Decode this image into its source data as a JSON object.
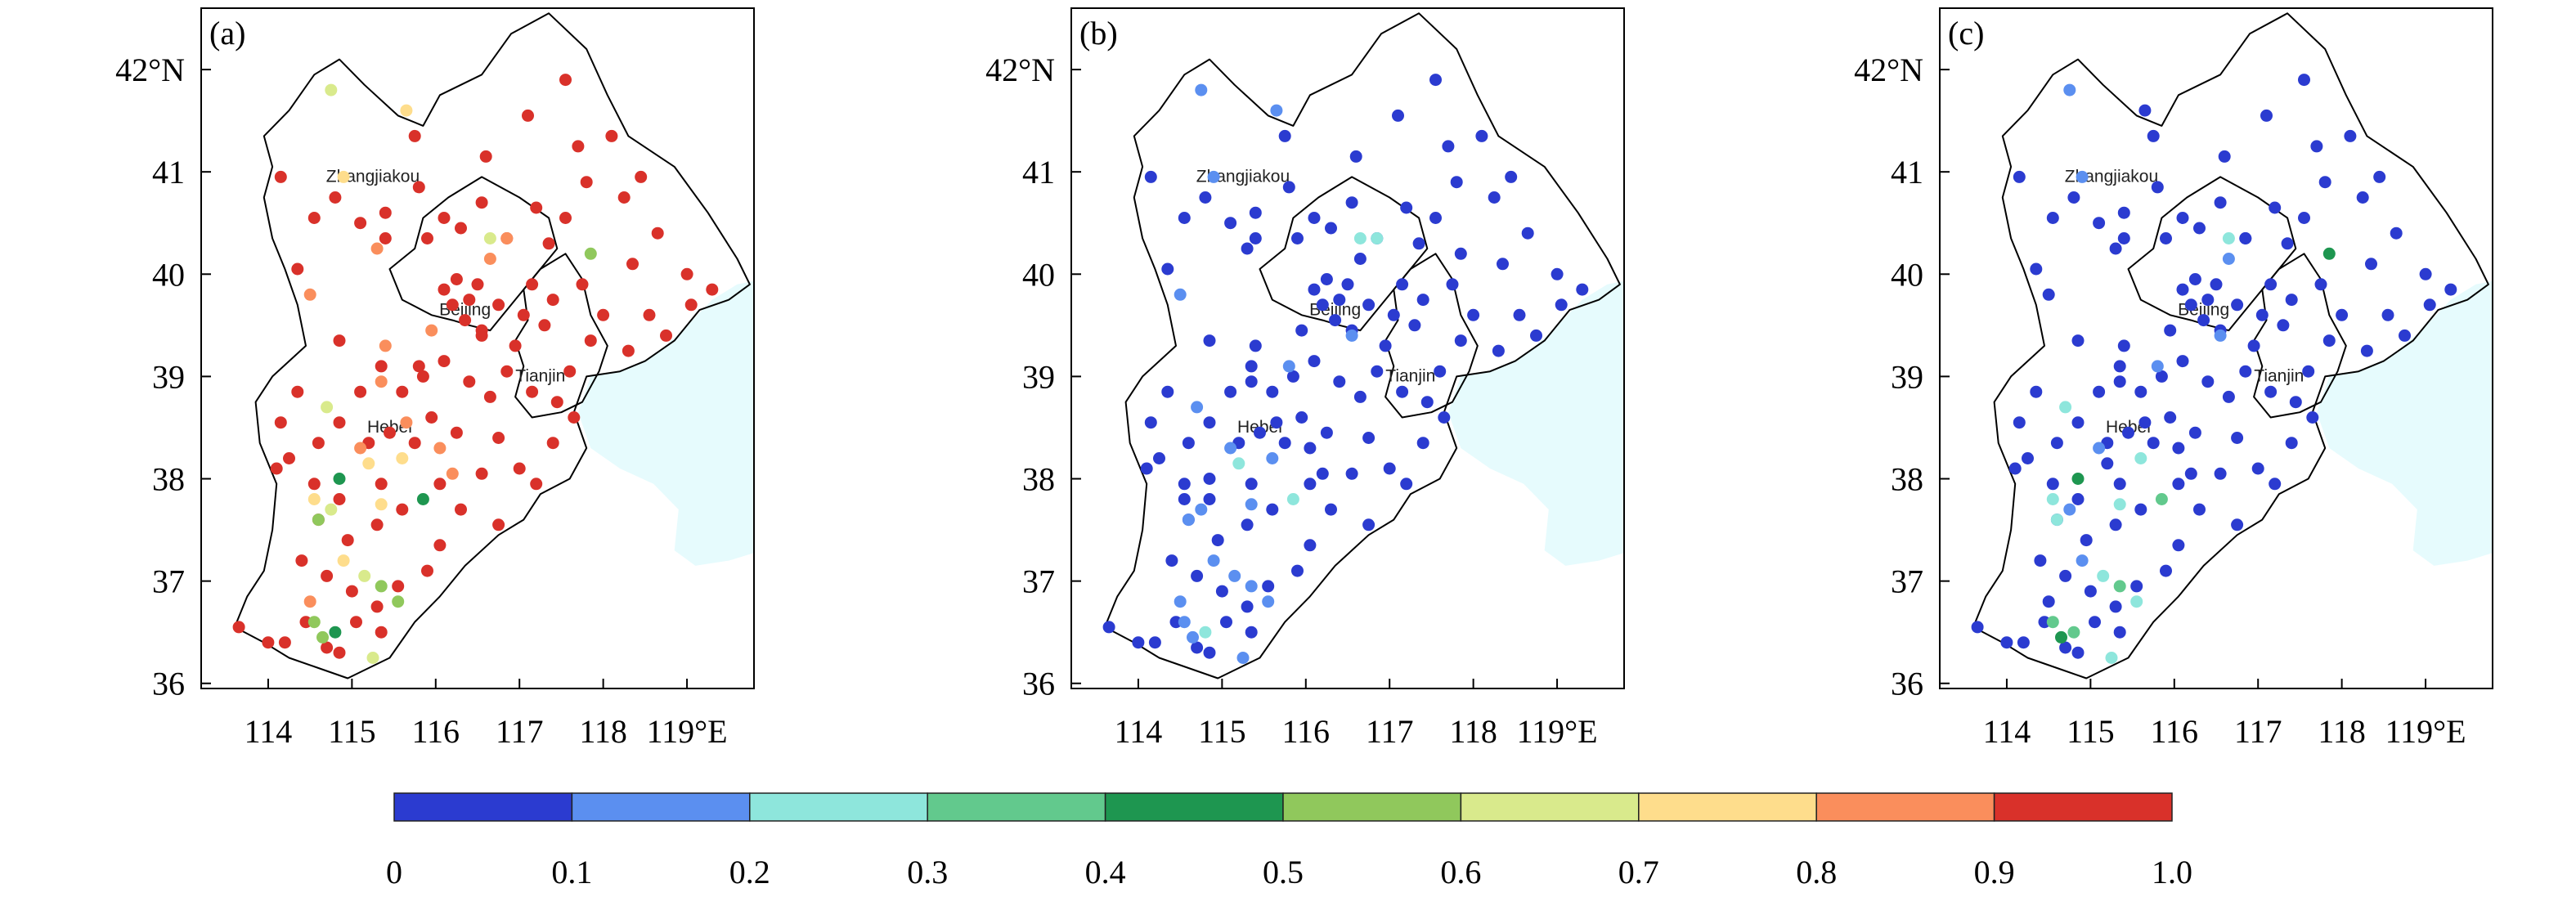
{
  "panels": [
    {
      "label": "(a)"
    },
    {
      "label": "(b)"
    },
    {
      "label": "(c)"
    }
  ],
  "map": {
    "lon_range": [
      113.2,
      119.8
    ],
    "lat_range": [
      35.95,
      42.6
    ],
    "lon_ticks": [
      114,
      115,
      116,
      117,
      118,
      119
    ],
    "lon_tick_labels": [
      "114",
      "115",
      "116",
      "117",
      "118",
      "119°E"
    ],
    "lat_ticks": [
      36,
      37,
      38,
      39,
      40,
      41,
      42
    ],
    "lat_tick_labels": [
      "36",
      "37",
      "38",
      "39",
      "40",
      "41",
      "42°N"
    ],
    "cities": [
      {
        "name": "Zhangjiakou",
        "lon": 115.25,
        "lat": 40.9
      },
      {
        "name": "Beijing",
        "lon": 116.35,
        "lat": 39.6
      },
      {
        "name": "Tianjin",
        "lon": 117.25,
        "lat": 38.95
      },
      {
        "name": "Hebei",
        "lon": 115.45,
        "lat": 38.45
      }
    ],
    "sea_color": "#e6fbfd",
    "border_color": "#000000"
  },
  "colorbar": {
    "colors": [
      "#2b3bd0",
      "#5b8ff0",
      "#8ee6dc",
      "#62c98d",
      "#1e9650",
      "#90c85c",
      "#d9ea8c",
      "#fedd8c",
      "#fa8e5c",
      "#d9312a"
    ],
    "tick_labels": [
      "0",
      "0.1",
      "0.2",
      "0.3",
      "0.4",
      "0.5",
      "0.6",
      "0.7",
      "0.8",
      "0.9",
      "1.0"
    ]
  },
  "stations": [
    [
      115.4,
      40.35,
      9,
      0,
      0
    ],
    [
      115.75,
      41.35,
      9,
      0,
      0
    ],
    [
      116.6,
      41.15,
      9,
      0,
      0
    ],
    [
      117.55,
      41.9,
      9,
      0,
      0
    ],
    [
      117.1,
      41.55,
      9,
      0,
      0
    ],
    [
      118.1,
      41.35,
      9,
      0,
      0
    ],
    [
      117.7,
      41.25,
      9,
      0,
      0
    ],
    [
      115.8,
      40.85,
      9,
      0,
      0
    ],
    [
      114.15,
      40.95,
      9,
      0,
      0
    ],
    [
      114.35,
      40.05,
      9,
      0,
      0
    ],
    [
      114.55,
      40.55,
      9,
      0,
      0
    ],
    [
      114.8,
      40.75,
      9,
      0,
      0
    ],
    [
      115.1,
      40.5,
      9,
      0,
      0
    ],
    [
      115.4,
      40.6,
      9,
      0,
      0
    ],
    [
      115.9,
      40.35,
      9,
      0,
      0
    ],
    [
      116.1,
      40.55,
      9,
      0,
      0
    ],
    [
      116.3,
      40.45,
      9,
      0,
      0
    ],
    [
      116.55,
      40.7,
      9,
      0,
      0
    ],
    [
      116.85,
      40.35,
      9,
      0,
      0
    ],
    [
      117.2,
      40.65,
      9,
      0,
      0
    ],
    [
      117.35,
      40.3,
      9,
      0,
      0
    ],
    [
      117.55,
      40.55,
      9,
      0,
      0
    ],
    [
      117.8,
      40.9,
      9,
      0,
      0
    ],
    [
      118.25,
      40.75,
      9,
      0,
      0
    ],
    [
      118.45,
      40.95,
      9,
      0,
      0
    ],
    [
      118.65,
      40.4,
      9,
      0,
      0
    ],
    [
      118.35,
      40.1,
      9,
      0,
      0
    ],
    [
      119.0,
      40.0,
      9,
      0,
      0
    ],
    [
      119.3,
      39.85,
      9,
      0,
      0
    ],
    [
      119.05,
      39.7,
      9,
      0,
      0
    ],
    [
      118.75,
      39.4,
      9,
      0,
      0
    ],
    [
      118.55,
      39.6,
      9,
      0,
      0
    ],
    [
      118.3,
      39.25,
      9,
      0,
      0
    ],
    [
      118.0,
      39.6,
      9,
      0,
      0
    ],
    [
      117.85,
      39.35,
      9,
      0,
      0
    ],
    [
      117.75,
      39.9,
      9,
      0,
      0
    ],
    [
      117.4,
      39.75,
      9,
      0,
      0
    ],
    [
      117.15,
      39.9,
      9,
      0,
      0
    ],
    [
      117.05,
      39.6,
      9,
      0,
      0
    ],
    [
      116.95,
      39.3,
      9,
      0,
      0
    ],
    [
      117.3,
      39.5,
      9,
      0,
      0
    ],
    [
      117.6,
      39.05,
      9,
      0,
      0
    ],
    [
      117.45,
      38.75,
      9,
      0,
      0
    ],
    [
      117.15,
      38.85,
      9,
      0,
      0
    ],
    [
      117.65,
      38.6,
      9,
      0,
      0
    ],
    [
      117.4,
      38.35,
      9,
      0,
      0
    ],
    [
      117.0,
      38.1,
      9,
      0,
      0
    ],
    [
      117.2,
      37.95,
      9,
      0,
      0
    ],
    [
      116.75,
      38.4,
      9,
      0,
      0
    ],
    [
      116.55,
      38.05,
      9,
      0,
      0
    ],
    [
      116.3,
      37.7,
      9,
      0,
      0
    ],
    [
      116.05,
      37.35,
      9,
      0,
      0
    ],
    [
      116.1,
      39.85,
      9,
      0,
      0
    ],
    [
      116.25,
      39.95,
      9,
      0,
      0
    ],
    [
      116.4,
      39.75,
      9,
      0,
      0
    ],
    [
      116.5,
      39.9,
      9,
      0,
      0
    ],
    [
      116.2,
      39.7,
      9,
      0,
      0
    ],
    [
      116.35,
      39.55,
      9,
      0,
      0
    ],
    [
      116.75,
      39.7,
      9,
      0,
      0
    ],
    [
      116.55,
      39.45,
      9,
      0,
      0
    ],
    [
      116.85,
      39.05,
      9,
      0,
      0
    ],
    [
      116.65,
      38.8,
      9,
      0,
      0
    ],
    [
      116.4,
      38.95,
      9,
      0,
      0
    ],
    [
      116.1,
      39.15,
      9,
      0,
      0
    ],
    [
      115.85,
      39.0,
      9,
      0,
      0
    ],
    [
      115.6,
      38.85,
      9,
      0,
      0
    ],
    [
      115.35,
      39.1,
      9,
      0,
      0
    ],
    [
      115.1,
      38.85,
      9,
      0,
      0
    ],
    [
      114.85,
      39.35,
      9,
      0,
      0
    ],
    [
      114.35,
      38.85,
      9,
      0,
      0
    ],
    [
      115.95,
      38.6,
      9,
      0,
      0
    ],
    [
      116.25,
      38.45,
      9,
      0,
      0
    ],
    [
      115.75,
      38.35,
      9,
      0,
      0
    ],
    [
      115.45,
      38.45,
      9,
      0,
      0
    ],
    [
      115.2,
      38.35,
      9,
      0,
      0
    ],
    [
      114.85,
      38.55,
      9,
      0,
      0
    ],
    [
      114.6,
      38.35,
      9,
      0,
      0
    ],
    [
      114.25,
      38.2,
      9,
      0,
      0
    ],
    [
      114.55,
      37.95,
      9,
      0,
      0
    ],
    [
      114.85,
      37.8,
      9,
      0,
      0
    ],
    [
      115.35,
      37.95,
      9,
      0,
      0
    ],
    [
      116.05,
      37.95,
      9,
      0,
      0
    ],
    [
      115.6,
      37.7,
      9,
      0,
      0
    ],
    [
      115.3,
      37.55,
      9,
      0,
      0
    ],
    [
      114.95,
      37.4,
      9,
      0,
      0
    ],
    [
      114.6,
      37.6,
      9,
      0,
      0
    ],
    [
      114.4,
      37.2,
      9,
      0,
      0
    ],
    [
      114.7,
      37.05,
      9,
      0,
      0
    ],
    [
      115.0,
      36.9,
      9,
      0,
      0
    ],
    [
      115.3,
      36.75,
      9,
      0,
      0
    ],
    [
      114.45,
      36.6,
      9,
      0,
      0
    ],
    [
      114.2,
      36.4,
      9,
      0,
      0
    ],
    [
      113.65,
      36.55,
      9,
      0,
      0
    ],
    [
      114.0,
      36.4,
      9,
      0,
      0
    ],
    [
      114.7,
      36.35,
      9,
      0,
      0
    ],
    [
      115.05,
      36.6,
      9,
      0,
      0
    ],
    [
      115.35,
      36.5,
      9,
      0,
      0
    ],
    [
      115.55,
      36.95,
      9,
      0,
      0
    ],
    [
      115.9,
      37.1,
      9,
      0,
      0
    ],
    [
      114.15,
      38.55,
      9,
      0,
      0
    ],
    [
      114.1,
      38.1,
      9,
      0,
      0
    ],
    [
      116.75,
      37.55,
      9,
      0,
      0
    ],
    [
      114.9,
      40.95,
      7,
      1,
      1
    ],
    [
      115.65,
      41.6,
      7,
      1,
      0
    ],
    [
      114.75,
      41.8,
      6,
      1,
      1
    ],
    [
      116.65,
      40.35,
      6,
      2,
      2
    ],
    [
      116.85,
      40.35,
      8,
      2,
      0
    ],
    [
      116.65,
      40.15,
      8,
      0,
      1
    ],
    [
      117.85,
      40.2,
      5,
      0,
      4
    ],
    [
      114.5,
      39.8,
      8,
      1,
      0
    ],
    [
      116.55,
      39.4,
      9,
      1,
      1
    ],
    [
      115.95,
      39.45,
      8,
      0,
      0
    ],
    [
      115.4,
      39.3,
      8,
      0,
      0
    ],
    [
      115.8,
      39.1,
      9,
      1,
      1
    ],
    [
      114.7,
      38.7,
      6,
      1,
      2
    ],
    [
      115.65,
      38.55,
      8,
      0,
      0
    ],
    [
      115.1,
      38.3,
      8,
      1,
      1
    ],
    [
      114.85,
      38.0,
      4,
      0,
      4
    ],
    [
      115.6,
      38.2,
      7,
      1,
      2
    ],
    [
      115.2,
      38.15,
      7,
      2,
      0
    ],
    [
      115.35,
      37.75,
      7,
      1,
      2
    ],
    [
      115.85,
      37.8,
      4,
      2,
      3
    ],
    [
      114.55,
      37.8,
      7,
      0,
      2
    ],
    [
      114.75,
      37.7,
      6,
      1,
      1
    ],
    [
      114.6,
      37.6,
      5,
      1,
      2
    ],
    [
      116.05,
      38.3,
      8,
      0,
      0
    ],
    [
      116.2,
      38.05,
      8,
      0,
      0
    ],
    [
      114.5,
      36.8,
      8,
      1,
      0
    ],
    [
      114.65,
      36.45,
      5,
      1,
      4
    ],
    [
      114.8,
      36.5,
      4,
      2,
      3
    ],
    [
      114.55,
      36.6,
      5,
      1,
      3
    ],
    [
      114.85,
      36.3,
      9,
      0,
      0
    ],
    [
      115.15,
      37.05,
      6,
      1,
      2
    ],
    [
      115.35,
      36.95,
      5,
      1,
      3
    ],
    [
      115.55,
      36.8,
      5,
      1,
      2
    ],
    [
      115.25,
      36.25,
      6,
      1,
      2
    ],
    [
      114.9,
      37.2,
      7,
      1,
      1
    ],
    [
      115.3,
      40.25,
      8,
      0,
      0
    ],
    [
      115.35,
      38.95,
      8,
      0,
      0
    ]
  ]
}
